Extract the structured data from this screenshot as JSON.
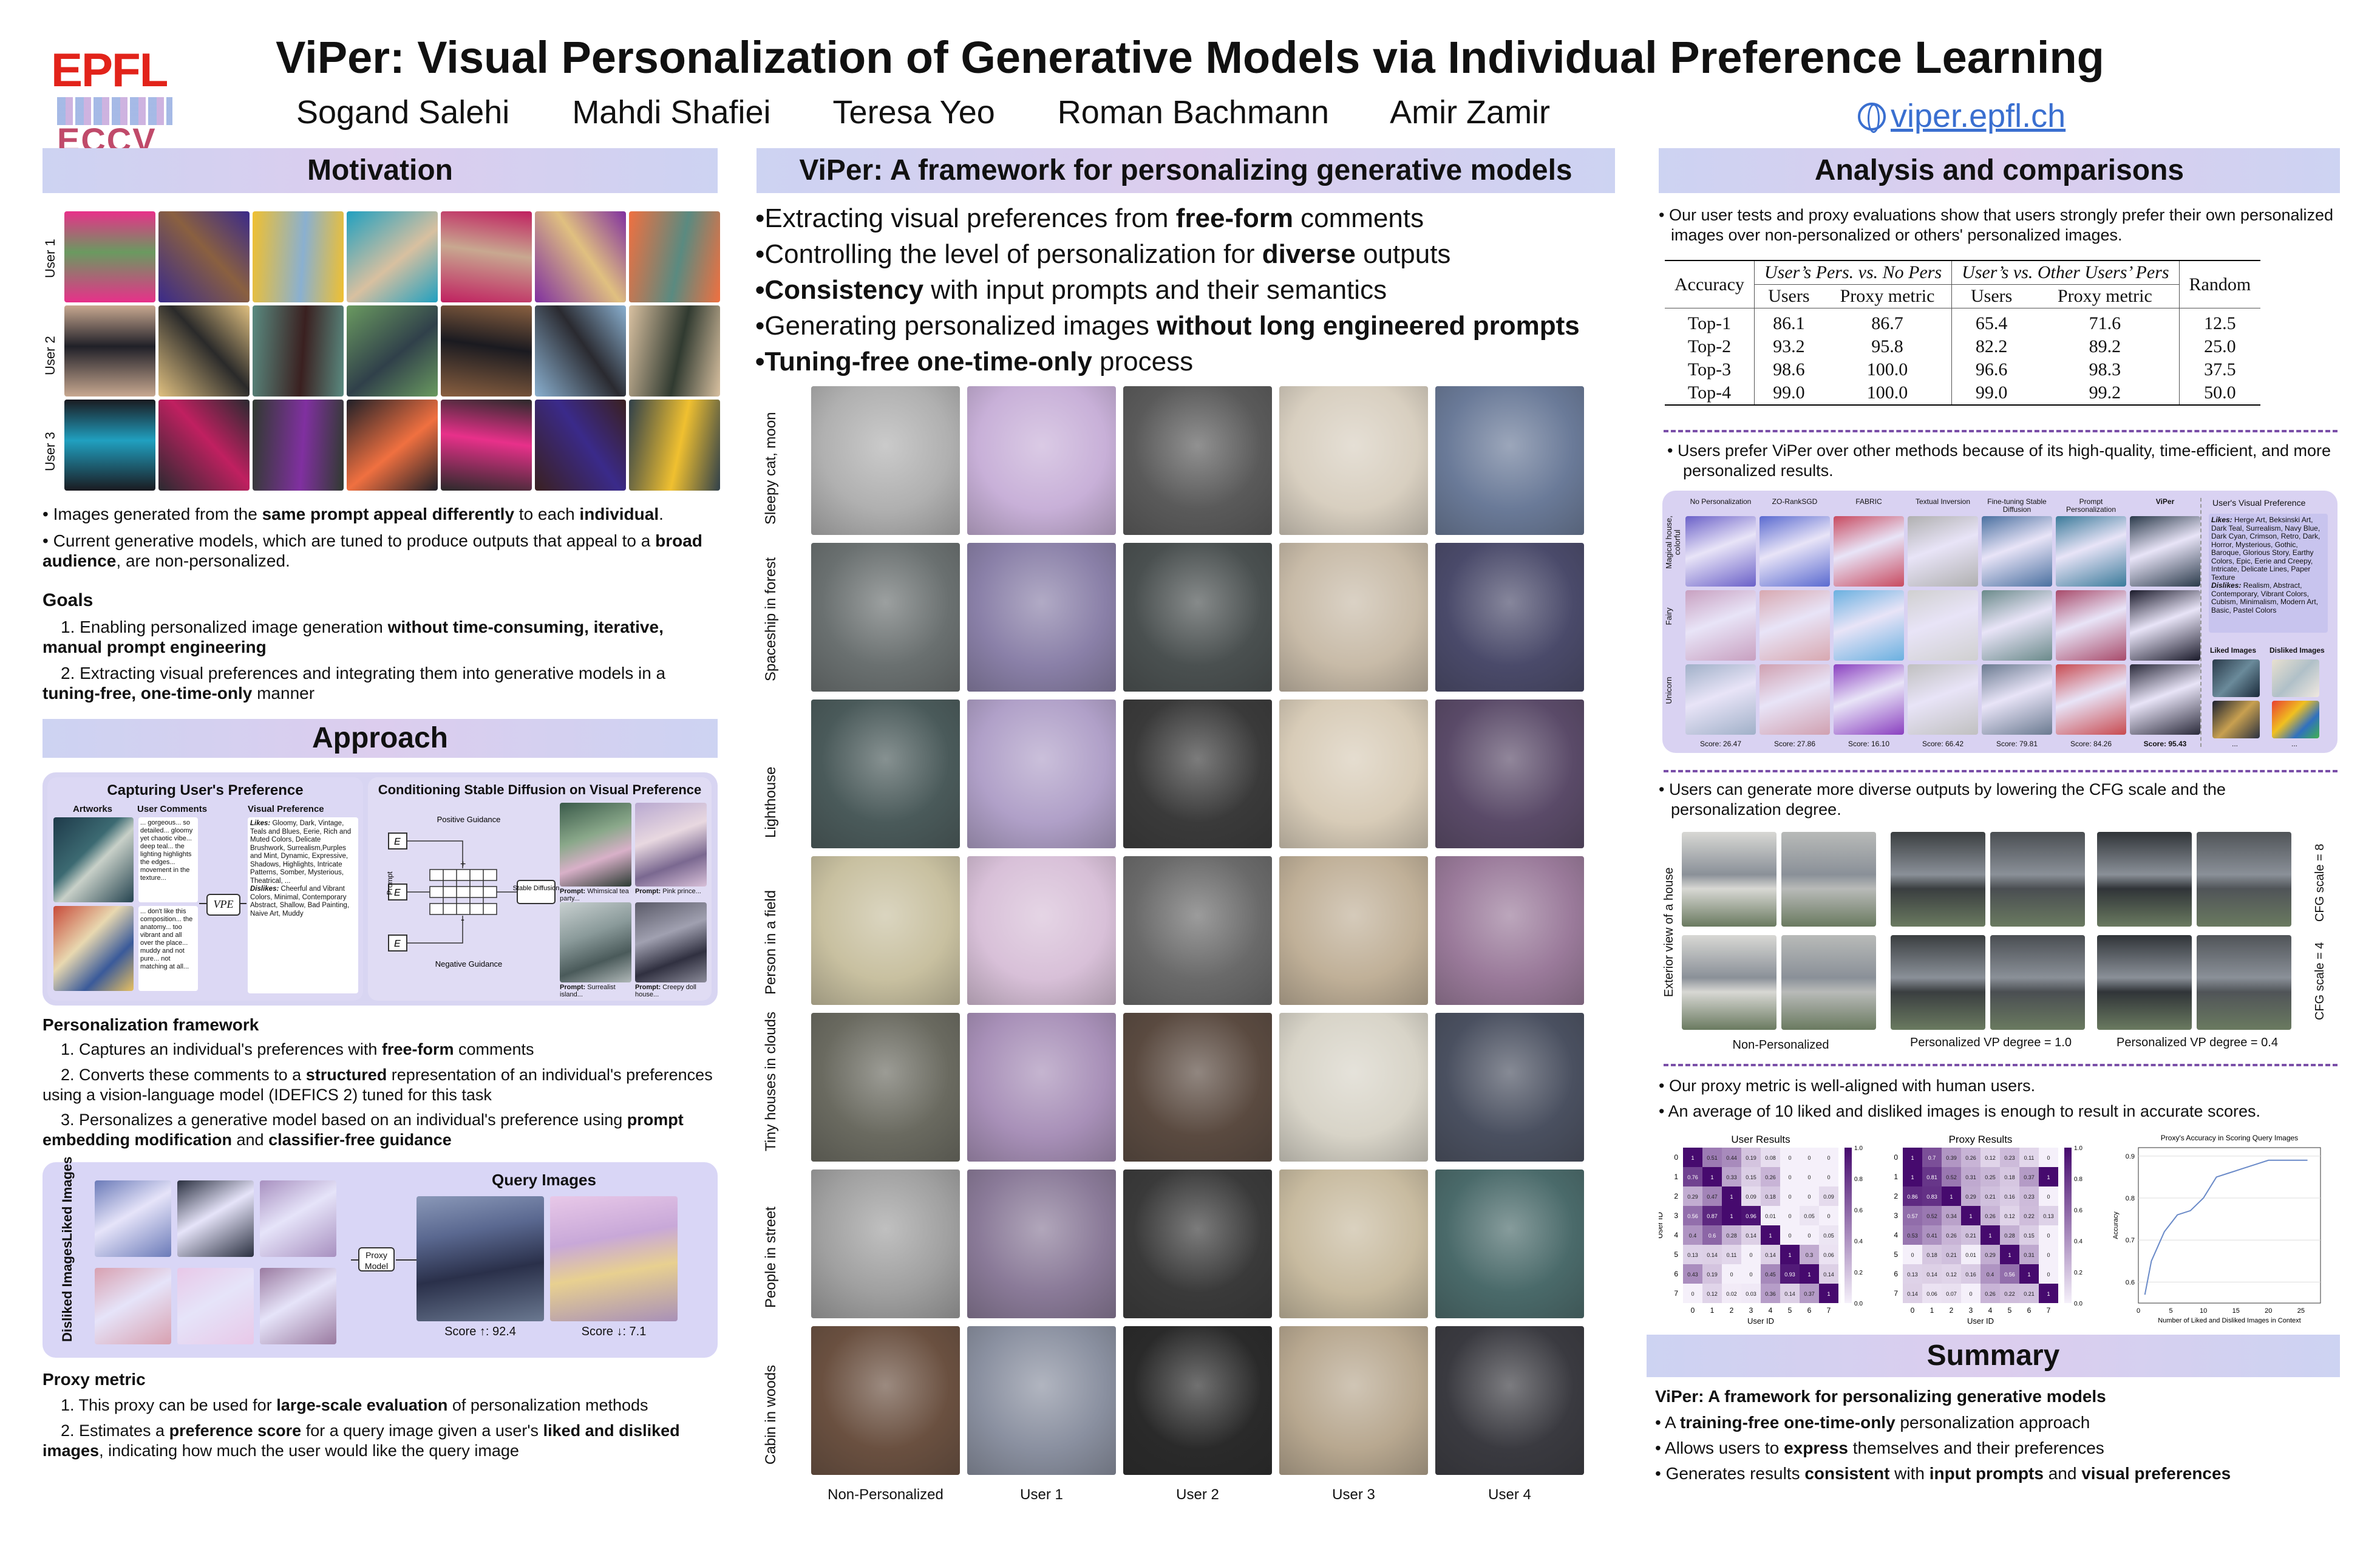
{
  "header": {
    "title": "ViPer: Visual Personalization of Generative Models via Individual Preference Learning",
    "authors": [
      "Sogand Salehi",
      "Mahdi Shafiei",
      "Teresa Yeo",
      "Roman Bachmann",
      "Amir Zamir"
    ],
    "website": "viper.epfl.ch",
    "logo_epfl": "EPFL",
    "logo_eccv": "ECCV"
  },
  "motivation": {
    "title": "Motivation",
    "user_labels": [
      "User 1",
      "User 2",
      "User 3"
    ],
    "bullet1_pre": "Images generated from the ",
    "bullet1_b1": "same prompt appeal differently",
    "bullet1_mid": " to each ",
    "bullet1_b2": "individual",
    "bullet1_post": ".",
    "bullet2_pre": "Current generative models, which are tuned to produce outputs that appeal to a ",
    "bullet2_b": "broad audience",
    "bullet2_post": ", are non-personalized.",
    "goals_title": "Goals",
    "goal1_pre": "1. Enabling personalized image generation ",
    "goal1_b": "without time-consuming, iterative, manual prompt engineering",
    "goal2_pre": "2. Extracting visual preferences and integrating them into generative models in a ",
    "goal2_b": "tuning-free, one-time-only",
    "goal2_post": " manner"
  },
  "approach": {
    "title": "Approach",
    "capture_title": "Capturing User's Preference",
    "col_artworks": "Artworks",
    "col_comments": "User Comments",
    "col_visual": "Visual Preference",
    "comment1": "... gorgeous... so detailed... gloomy yet chaotic vibe... deep teal... the lighting highlights the edges... movement in the texture...",
    "comment2": "... don't like this composition... the anatomy... too vibrant and all over the place... muddy and not pure... not matching at all...",
    "vpe_label": "VPE",
    "likes_label": "Likes:",
    "likes_text": "Gloomy, Dark, Vintage, Teals and Blues, Eerie, Rich and Muted Colors, Delicate Brushwork, Surrealism,Purples and Mint, Dynamic, Expressive, Shadows, Highlights, Intricate Patterns, Somber, Mysterious, Theatrical, ...",
    "dislikes_label": "Dislikes:",
    "dislikes_text": "Cheerful and Vibrant Colors, Minimal, Contemporary Abstract, Shallow, Bad Painting, Naive Art, Muddy",
    "cond_title": "Conditioning Stable Diffusion on Visual Preference",
    "pos_guidance": "Positive Guidance",
    "neg_guidance": "Negative Guidance",
    "prompt_label": "Prompt",
    "enc_label": "E",
    "sd_label": "Stable Diffusion",
    "prompt1_label": "Prompt:",
    "prompt1_text": "Whimsical tea party...",
    "prompt2_label": "Prompt:",
    "prompt2_text": "Pink prince...",
    "prompt3_label": "Prompt:",
    "prompt3_text": "Surrealist island...",
    "prompt4_label": "Prompt:",
    "prompt4_text": "Creepy doll house...",
    "pf_title": "Personalization framework",
    "pf1_pre": "1. Captures an individual's preferences with ",
    "pf1_b": "free-form",
    "pf1_post": " comments",
    "pf2_pre": "2. Converts these comments to a ",
    "pf2_b": "structured",
    "pf2_post": " representation of an individual's preferences using a vision-language model (IDEFICS 2) tuned for this task",
    "pf3_pre": "3. Personalizes a generative model based on an individual's preference using ",
    "pf3_b1": "prompt embedding modification",
    "pf3_mid": " and ",
    "pf3_b2": "classifier-free guidance",
    "liked_label": "Liked Images",
    "disliked_label": "Disliked Images",
    "proxy_model_label": "Proxy Model",
    "query_title": "Query Images",
    "score1": "Score ↑: 92.4",
    "score2": "Score ↓: 7.1",
    "proxy_title": "Proxy metric",
    "px1_pre": "1. This proxy can be used for ",
    "px1_b": "large-scale evaluation",
    "px1_post": " of personalization methods",
    "px2_pre": "2. Estimates a ",
    "px2_b1": "preference score",
    "px2_mid": " for a query image given a user's ",
    "px2_b2": "liked and disliked images",
    "px2_post": ", indicating how much the user would like the query image"
  },
  "framework": {
    "title": "ViPer: A framework for personalizing generative models",
    "b1_pre": "•Extracting visual preferences from ",
    "b1_b": "free-form",
    "b1_post": " comments",
    "b2_pre": "•Controlling the level of personalization for ",
    "b2_b": "diverse",
    "b2_post": " outputs",
    "b3_b": "•Consistency",
    "b3_post": " with input prompts and their semantics",
    "b4_pre": "•Generating personalized images ",
    "b4_b": "without long engineered prompts",
    "b5_b": "•Tuning-free one-time-only",
    "b5_post": " process",
    "row_labels": [
      "Sleepy cat, moon",
      "Spaceship in forest",
      "Lighthouse",
      "Person in a field",
      "Tiny houses in clouds",
      "People in street",
      "Cabin in woods"
    ],
    "col_labels": [
      "Non-Personalized",
      "User 1",
      "User 2",
      "User 3",
      "User 4"
    ]
  },
  "analysis": {
    "title": "Analysis and comparisons",
    "bullet1": "Our user tests and proxy evaluations show that users strongly prefer their own personalized images over non-personalized or others' personalized images.",
    "table": {
      "h_accuracy": "Accuracy",
      "h_group1": "User’s Pers. vs. No Pers",
      "h_group2": "User’s vs. Other Users’ Pers",
      "h_users": "Users",
      "h_proxy": "Proxy metric",
      "h_random": "Random",
      "rows": [
        [
          "Top-1",
          "86.1",
          "86.7",
          "65.4",
          "71.6",
          "12.5"
        ],
        [
          "Top-2",
          "93.2",
          "95.8",
          "82.2",
          "89.2",
          "25.0"
        ],
        [
          "Top-3",
          "98.6",
          "100.0",
          "96.6",
          "98.3",
          "37.5"
        ],
        [
          "Top-4",
          "99.0",
          "100.0",
          "99.0",
          "99.2",
          "50.0"
        ]
      ]
    },
    "bullet2": "Users prefer ViPer over other methods because of its high-quality, time-efficient, and more personalized results.",
    "methods": [
      "No Personalization",
      "ZO-RankSGD",
      "FABRIC",
      "Textual Inversion",
      "Fine-tuning Stable Diffusion",
      "Prompt Personalization",
      "ViPer"
    ],
    "method_rows": [
      "Magical house, colorful",
      "Fairy",
      "Unicorn"
    ],
    "method_scores": [
      "Score: 26.47",
      "Score: 27.86",
      "Score: 16.10",
      "Score: 66.42",
      "Score: 79.81",
      "Score: 84.26",
      "Score: 95.43"
    ],
    "uvp_title": "User's Visual Preference",
    "uvp_likes_label": "Likes:",
    "uvp_likes": "Herge Art, Beksinski Art, Dark Teal, Surrealism, Navy Blue, Dark Cyan, Crimson, Retro, Dark, Horror, Mysterious, Gothic, Baroque, Glorious Story, Earthy Colors, Epic, Eerie and Creepy, Intricate, Delicate Lines, Paper Texture",
    "uvp_dislikes_label": "Dislikes:",
    "uvp_dislikes": "Realism, Abstract, Contemporary, Vibrant Colors, Cubism, Minimalism, Modern Art, Basic, Pastel Colors",
    "uvp_liked": "Liked Images",
    "uvp_disliked": "Disliked Images",
    "ellipsis": "...",
    "bullet3": "Users can generate more diverse outputs by lowering the CFG scale and the personalization degree.",
    "house_row_label": "Exterior view of a house",
    "cfg8": "CFG scale = 8",
    "cfg4": "CFG scale = 4",
    "house_cols": [
      "Non-Personalized",
      "Personalized VP degree = 1.0",
      "Personalized VP degree = 0.4"
    ],
    "bullet4": "Our proxy metric is well-aligned with human users.",
    "bullet5": "An average of 10 liked and disliked images is enough to result in accurate scores.",
    "heat1_title": "User Results",
    "heat2_title": "Proxy Results",
    "heat_xlabel": "User ID",
    "heat_ylabel": "User ID",
    "heat_ticks": [
      "0",
      "1",
      "2",
      "3",
      "4",
      "5",
      "6",
      "7"
    ],
    "cbar_ticks": [
      "1.0",
      "0.8",
      "0.6",
      "0.4",
      "0.2",
      "0.0"
    ]
  },
  "chart_data": [
    {
      "type": "heatmap",
      "title": "User Results",
      "xlabel": "User ID",
      "ylabel": "User ID",
      "x": [
        "0",
        "1",
        "2",
        "3",
        "4",
        "5",
        "6",
        "7"
      ],
      "y": [
        "0",
        "1",
        "2",
        "3",
        "4",
        "5",
        "6",
        "7"
      ],
      "values": [
        [
          1,
          0.51,
          0.44,
          0.19,
          0.08,
          0,
          0,
          0
        ],
        [
          0.76,
          1,
          0.33,
          0.15,
          0.26,
          0,
          0,
          0
        ],
        [
          0.29,
          0.47,
          1,
          0.09,
          0.18,
          0,
          0,
          0.09
        ],
        [
          0.56,
          0.87,
          1,
          0.96,
          0.01,
          0,
          0.05,
          0
        ],
        [
          0.4,
          0.6,
          0.28,
          0.14,
          1,
          0,
          0,
          0.05
        ],
        [
          0.13,
          0.14,
          0.11,
          0,
          0.14,
          1,
          0.3,
          0.06
        ],
        [
          0.43,
          0.19,
          0,
          0,
          0.45,
          0.93,
          1,
          0.14
        ],
        [
          0,
          0.12,
          0.02,
          0.03,
          0.36,
          0.14,
          0.37,
          1
        ]
      ],
      "colorbar": [
        0.0,
        1.0
      ]
    },
    {
      "type": "heatmap",
      "title": "Proxy Results",
      "xlabel": "User ID",
      "ylabel": "",
      "x": [
        "0",
        "1",
        "2",
        "3",
        "4",
        "5",
        "6",
        "7"
      ],
      "y": [
        "0",
        "1",
        "2",
        "3",
        "4",
        "5",
        "6",
        "7"
      ],
      "values": [
        [
          1,
          0.7,
          0.39,
          0.26,
          0.12,
          0.23,
          0.11,
          0
        ],
        [
          1,
          0.81,
          0.52,
          0.31,
          0.25,
          0.18,
          0.37,
          1
        ],
        [
          0.86,
          0.83,
          1,
          0.29,
          0.21,
          0.16,
          0.23,
          0
        ],
        [
          0.57,
          0.52,
          0.34,
          1,
          0.26,
          0.12,
          0.22,
          0.13
        ],
        [
          0.53,
          0.41,
          0.26,
          0.21,
          1,
          0.28,
          0.15,
          0
        ],
        [
          0,
          0.18,
          0.21,
          0.01,
          0.29,
          1,
          0.31,
          0
        ],
        [
          0.13,
          0.14,
          0.12,
          0.16,
          0.4,
          0.56,
          1,
          0
        ],
        [
          0.14,
          0.06,
          0.07,
          0,
          0.26,
          0.22,
          0.21,
          1
        ]
      ],
      "colorbar": [
        0.0,
        1.0
      ]
    },
    {
      "type": "line",
      "title": "Proxy's Accuracy in Scoring Query Images",
      "xlabel": "Number of Liked and Disliked Images in Context",
      "ylabel": "Accuracy",
      "x": [
        1,
        2,
        4,
        6,
        8,
        10,
        12,
        14,
        16,
        18,
        20,
        22,
        24,
        26
      ],
      "y": [
        0.57,
        0.65,
        0.72,
        0.76,
        0.77,
        0.8,
        0.85,
        0.86,
        0.87,
        0.88,
        0.89,
        0.89,
        0.89,
        0.89
      ],
      "xlim": [
        0,
        28
      ],
      "ylim": [
        0.55,
        0.92
      ],
      "xticks": [
        "0",
        "5",
        "10",
        "15",
        "20",
        "25"
      ],
      "yticks": [
        "0.6",
        "0.7",
        "0.8",
        "0.9"
      ]
    }
  ],
  "summary": {
    "title": "Summary",
    "line1": "ViPer: A framework for personalizing generative models",
    "b1_pre": "• A ",
    "b1_b": "training-free one-time-only",
    "b1_post": " personalization approach",
    "b2_pre": "• Allows users to ",
    "b2_b": "express",
    "b2_post": " themselves and their preferences",
    "b3_pre": "• Generates results ",
    "b3_b1": "consistent",
    "b3_mid": " with ",
    "b3_b2": "input prompts",
    "b3_mid2": " and ",
    "b3_b3": "visual preferences"
  },
  "colors": {
    "header_gradient": "#cdd3f2",
    "panel": "#d8d5f2",
    "accent_purple": "#7a4fa8",
    "epfl_red": "#e2231a",
    "link_blue": "#3a6fd0"
  }
}
